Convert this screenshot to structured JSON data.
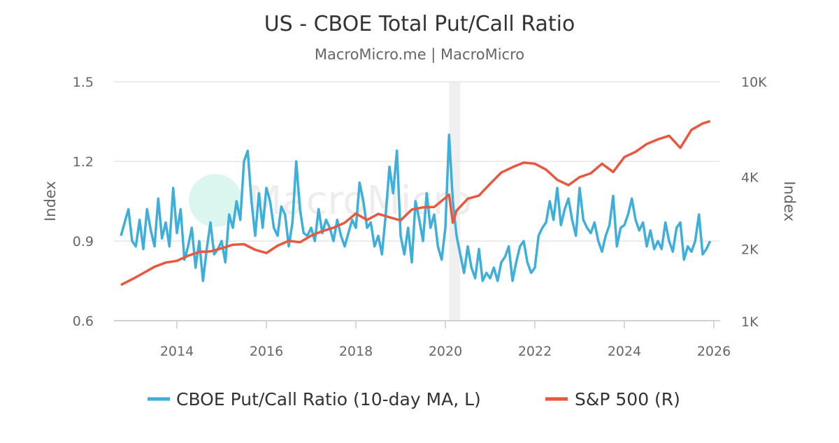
{
  "chart_data": {
    "type": "line",
    "title": "US - CBOE Total Put/Call Ratio",
    "subtitle": "MacroMicro.me | MacroMicro",
    "watermark": "MacroMicro",
    "ylabel_left": "Index",
    "ylabel_right": "Index",
    "x_ticks": [
      "2014",
      "2016",
      "2018",
      "2020",
      "2022",
      "2024",
      "2026"
    ],
    "y_left": {
      "ticks": [
        "0.6",
        "0.9",
        "1.2",
        "1.5"
      ],
      "range": [
        0.6,
        1.5
      ]
    },
    "y_right": {
      "ticks": [
        "1K",
        "2K",
        "4K",
        "10K"
      ],
      "tick_values": [
        1000,
        2000,
        4000,
        10000
      ],
      "range": [
        1000,
        10000
      ],
      "scale": "log"
    },
    "grid": true,
    "legend_position": "bottom",
    "shaded_periods": [
      {
        "start": "2020-02",
        "end": "2020-04"
      }
    ],
    "series": [
      {
        "name": "CBOE Put/Call Ratio (10-day MA, L)",
        "axis": "left",
        "color": "#3eafdb",
        "start": "2012-10",
        "frequency": "monthly",
        "values": [
          0.92,
          0.97,
          1.02,
          0.9,
          0.88,
          0.98,
          0.87,
          1.02,
          0.94,
          0.88,
          1.06,
          0.91,
          0.97,
          0.88,
          1.1,
          0.93,
          1.02,
          0.83,
          0.88,
          0.95,
          0.8,
          0.9,
          0.75,
          0.87,
          0.97,
          0.85,
          0.87,
          0.9,
          0.82,
          1.0,
          0.95,
          1.05,
          0.98,
          1.2,
          1.24,
          1.05,
          0.92,
          1.08,
          0.95,
          1.1,
          1.05,
          0.95,
          0.92,
          1.03,
          1.0,
          0.88,
          0.97,
          1.2,
          1.02,
          0.93,
          0.92,
          0.95,
          0.9,
          1.02,
          0.93,
          0.98,
          0.95,
          0.9,
          0.98,
          0.92,
          0.88,
          0.93,
          0.98,
          0.95,
          1.12,
          1.05,
          0.95,
          0.97,
          0.88,
          0.92,
          0.85,
          1.0,
          1.18,
          1.08,
          1.24,
          0.92,
          0.85,
          0.95,
          0.82,
          1.05,
          0.98,
          0.9,
          1.08,
          0.95,
          1.0,
          0.88,
          0.83,
          0.95,
          1.3,
          1.05,
          0.92,
          0.85,
          0.78,
          0.88,
          0.8,
          0.76,
          0.87,
          0.75,
          0.78,
          0.76,
          0.8,
          0.75,
          0.82,
          0.84,
          0.88,
          0.75,
          0.82,
          0.88,
          0.9,
          0.82,
          0.78,
          0.8,
          0.92,
          0.95,
          0.97,
          1.05,
          0.98,
          1.1,
          0.96,
          1.02,
          1.06,
          0.98,
          0.92,
          1.1,
          0.98,
          0.95,
          0.93,
          0.97,
          0.9,
          0.86,
          0.92,
          0.96,
          1.07,
          0.88,
          0.95,
          0.96,
          1.0,
          1.06,
          0.98,
          0.94,
          0.97,
          0.88,
          0.94,
          0.87,
          0.9,
          0.87,
          0.97,
          0.9,
          0.86,
          0.95,
          0.97,
          0.83,
          0.88,
          0.86,
          0.9,
          1.0,
          0.85,
          0.87,
          0.9
        ]
      },
      {
        "name": "S&P 500 (R)",
        "axis": "right",
        "color": "#e9573f",
        "points": [
          [
            "2012-10",
            1420
          ],
          [
            "2013-01",
            1500
          ],
          [
            "2013-04",
            1590
          ],
          [
            "2013-07",
            1690
          ],
          [
            "2013-10",
            1760
          ],
          [
            "2014-01",
            1790
          ],
          [
            "2014-04",
            1880
          ],
          [
            "2014-07",
            1950
          ],
          [
            "2014-10",
            1960
          ],
          [
            "2015-01",
            2020
          ],
          [
            "2015-04",
            2090
          ],
          [
            "2015-07",
            2100
          ],
          [
            "2015-10",
            1990
          ],
          [
            "2016-01",
            1930
          ],
          [
            "2016-04",
            2070
          ],
          [
            "2016-07",
            2170
          ],
          [
            "2016-10",
            2140
          ],
          [
            "2017-01",
            2280
          ],
          [
            "2017-04",
            2380
          ],
          [
            "2017-07",
            2460
          ],
          [
            "2017-10",
            2580
          ],
          [
            "2018-01",
            2820
          ],
          [
            "2018-04",
            2650
          ],
          [
            "2018-07",
            2810
          ],
          [
            "2018-10",
            2720
          ],
          [
            "2019-01",
            2640
          ],
          [
            "2019-04",
            2930
          ],
          [
            "2019-07",
            2990
          ],
          [
            "2019-10",
            3000
          ],
          [
            "2020-01",
            3280
          ],
          [
            "2020-02",
            3380
          ],
          [
            "2020-03",
            2580
          ],
          [
            "2020-04",
            2900
          ],
          [
            "2020-07",
            3250
          ],
          [
            "2020-10",
            3350
          ],
          [
            "2021-01",
            3750
          ],
          [
            "2021-04",
            4180
          ],
          [
            "2021-07",
            4400
          ],
          [
            "2021-10",
            4600
          ],
          [
            "2022-01",
            4550
          ],
          [
            "2022-04",
            4300
          ],
          [
            "2022-07",
            3900
          ],
          [
            "2022-10",
            3700
          ],
          [
            "2023-01",
            4000
          ],
          [
            "2023-04",
            4150
          ],
          [
            "2023-07",
            4550
          ],
          [
            "2023-10",
            4200
          ],
          [
            "2024-01",
            4850
          ],
          [
            "2024-04",
            5100
          ],
          [
            "2024-07",
            5500
          ],
          [
            "2024-10",
            5750
          ],
          [
            "2025-01",
            5950
          ],
          [
            "2025-04",
            5300
          ],
          [
            "2025-07",
            6300
          ],
          [
            "2025-10",
            6700
          ],
          [
            "2025-12",
            6850
          ]
        ]
      }
    ]
  }
}
